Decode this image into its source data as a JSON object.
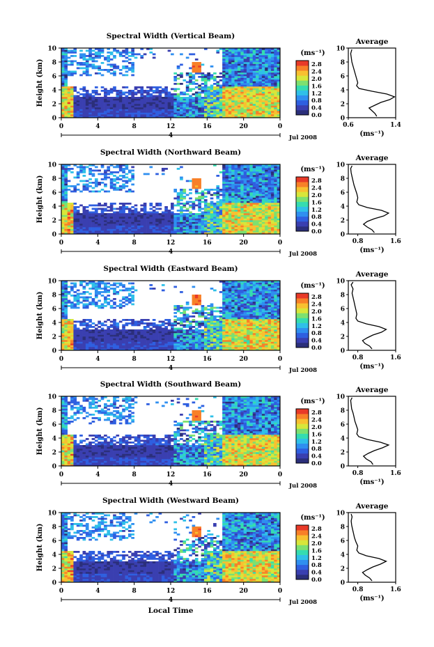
{
  "chart_data": {
    "type": "heatmap",
    "xlabel": "Local Time",
    "x_ticks": [
      "0",
      "4",
      "8",
      "12",
      "16",
      "20",
      "0"
    ],
    "xlim": [
      0,
      24
    ],
    "date_label": "Jul 2008",
    "day_marker": "4",
    "ylabel": "Height (km)",
    "y_ticks": [
      "0",
      "2",
      "4",
      "6",
      "8",
      "10"
    ],
    "ylim": [
      0,
      10
    ],
    "colorbar": {
      "unit": "(ms⁻¹)",
      "ticks": [
        "0.0",
        "0.4",
        "0.8",
        "1.2",
        "1.6",
        "2.0",
        "2.4",
        "2.8"
      ],
      "range": [
        0,
        3.0
      ],
      "colors": [
        "#2b2f7a",
        "#3a3fb0",
        "#2f5fe0",
        "#2f8ff0",
        "#2fc0e8",
        "#35dcb0",
        "#7de070",
        "#d8e63a",
        "#f8c030",
        "#f88028",
        "#e83a28"
      ]
    },
    "profile": {
      "title": "Average",
      "xlabel": "(ms⁻¹)",
      "ylabel_ticks": [
        "0",
        "2",
        "4",
        "6",
        "8",
        "10"
      ]
    },
    "panels": [
      {
        "title": "Spectral Width (Vertical Beam)",
        "profile_ticks": [
          "0.6",
          "1.4"
        ],
        "profile_xlim": [
          0.6,
          1.4
        ],
        "profile": [
          [
            1.08,
            0.2
          ],
          [
            1.05,
            0.6
          ],
          [
            1.0,
            1.0
          ],
          [
            0.95,
            1.4
          ],
          [
            1.05,
            1.8
          ],
          [
            1.15,
            2.2
          ],
          [
            1.3,
            2.6
          ],
          [
            1.38,
            3.0
          ],
          [
            1.25,
            3.4
          ],
          [
            1.0,
            3.8
          ],
          [
            0.78,
            4.2
          ],
          [
            0.74,
            4.6
          ],
          [
            0.76,
            5.0
          ],
          [
            0.74,
            5.6
          ],
          [
            0.72,
            6.2
          ],
          [
            0.7,
            6.8
          ],
          [
            0.68,
            7.4
          ],
          [
            0.66,
            8.0
          ],
          [
            0.65,
            8.6
          ],
          [
            0.64,
            9.2
          ],
          [
            0.66,
            9.8
          ]
        ]
      },
      {
        "title": "Spectral Width (Northward Beam)",
        "profile_ticks": [
          "0.8",
          "1.6"
        ],
        "profile_xlim": [
          0.6,
          1.6
        ],
        "profile": [
          [
            1.15,
            0.2
          ],
          [
            1.1,
            0.6
          ],
          [
            1.0,
            1.0
          ],
          [
            0.92,
            1.4
          ],
          [
            1.0,
            1.8
          ],
          [
            1.15,
            2.2
          ],
          [
            1.35,
            2.6
          ],
          [
            1.45,
            3.0
          ],
          [
            1.3,
            3.4
          ],
          [
            1.0,
            3.8
          ],
          [
            0.82,
            4.2
          ],
          [
            0.78,
            4.6
          ],
          [
            0.8,
            5.2
          ],
          [
            0.78,
            5.8
          ],
          [
            0.75,
            6.4
          ],
          [
            0.72,
            7.0
          ],
          [
            0.7,
            7.6
          ],
          [
            0.68,
            8.2
          ],
          [
            0.66,
            8.8
          ],
          [
            0.65,
            9.4
          ],
          [
            0.68,
            9.8
          ]
        ]
      },
      {
        "title": "Spectral Width (Eastward Beam)",
        "profile_ticks": [
          "0.8",
          "1.6"
        ],
        "profile_xlim": [
          0.6,
          1.6
        ],
        "profile": [
          [
            1.1,
            0.2
          ],
          [
            1.05,
            0.6
          ],
          [
            0.95,
            1.0
          ],
          [
            0.9,
            1.4
          ],
          [
            1.0,
            1.8
          ],
          [
            1.12,
            2.2
          ],
          [
            1.3,
            2.6
          ],
          [
            1.4,
            3.0
          ],
          [
            1.25,
            3.4
          ],
          [
            0.98,
            3.8
          ],
          [
            0.8,
            4.2
          ],
          [
            0.76,
            4.6
          ],
          [
            0.78,
            5.2
          ],
          [
            0.76,
            5.8
          ],
          [
            0.74,
            6.4
          ],
          [
            0.72,
            7.0
          ],
          [
            0.7,
            7.6
          ],
          [
            0.68,
            8.2
          ],
          [
            0.7,
            8.8
          ],
          [
            0.66,
            9.4
          ],
          [
            0.7,
            9.8
          ]
        ]
      },
      {
        "title": "Spectral Width (Southward Beam)",
        "profile_ticks": [
          "0.8",
          "1.6"
        ],
        "profile_xlim": [
          0.6,
          1.6
        ],
        "profile": [
          [
            1.12,
            0.2
          ],
          [
            1.08,
            0.6
          ],
          [
            0.98,
            1.0
          ],
          [
            0.92,
            1.4
          ],
          [
            1.02,
            1.8
          ],
          [
            1.15,
            2.2
          ],
          [
            1.32,
            2.6
          ],
          [
            1.45,
            3.0
          ],
          [
            1.28,
            3.4
          ],
          [
            1.0,
            3.8
          ],
          [
            0.82,
            4.2
          ],
          [
            0.78,
            4.6
          ],
          [
            0.8,
            5.2
          ],
          [
            0.77,
            5.8
          ],
          [
            0.74,
            6.4
          ],
          [
            0.72,
            7.0
          ],
          [
            0.7,
            7.6
          ],
          [
            0.67,
            8.2
          ],
          [
            0.66,
            8.8
          ],
          [
            0.65,
            9.4
          ],
          [
            0.68,
            9.8
          ]
        ]
      },
      {
        "title": "Spectral Width (Westward Beam)",
        "profile_ticks": [
          "0.8",
          "1.6"
        ],
        "profile_xlim": [
          0.6,
          1.6
        ],
        "profile": [
          [
            1.1,
            0.2
          ],
          [
            1.05,
            0.6
          ],
          [
            0.96,
            1.0
          ],
          [
            0.9,
            1.4
          ],
          [
            1.0,
            1.8
          ],
          [
            1.12,
            2.2
          ],
          [
            1.28,
            2.6
          ],
          [
            1.4,
            3.0
          ],
          [
            1.25,
            3.4
          ],
          [
            0.98,
            3.8
          ],
          [
            0.82,
            4.2
          ],
          [
            0.78,
            4.6
          ],
          [
            0.8,
            5.2
          ],
          [
            0.76,
            5.8
          ],
          [
            0.73,
            6.4
          ],
          [
            0.71,
            7.0
          ],
          [
            0.69,
            7.6
          ],
          [
            0.67,
            8.2
          ],
          [
            0.66,
            8.8
          ],
          [
            0.68,
            9.4
          ],
          [
            0.66,
            9.8
          ]
        ]
      }
    ]
  }
}
